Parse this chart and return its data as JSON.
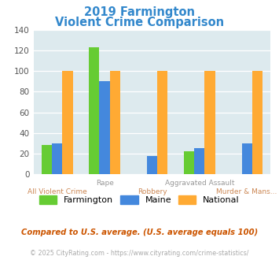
{
  "title_line1": "2019 Farmington",
  "title_line2": "Violent Crime Comparison",
  "farmington": [
    28,
    123,
    0,
    22,
    0
  ],
  "maine": [
    30,
    90,
    18,
    25,
    30
  ],
  "national": [
    100,
    100,
    100,
    100,
    100
  ],
  "bar_color_farmington": "#66cc33",
  "bar_color_maine": "#4488dd",
  "bar_color_national": "#ffaa33",
  "ylim": [
    0,
    140
  ],
  "yticks": [
    0,
    20,
    40,
    60,
    80,
    100,
    120,
    140
  ],
  "bg_color": "#ddeaee",
  "title_color": "#3388cc",
  "top_labels": [
    "",
    "Rape",
    "",
    "Aggravated Assault",
    ""
  ],
  "bottom_labels": [
    "All Violent Crime",
    "",
    "Robbery",
    "",
    "Murder & Mans..."
  ],
  "top_label_color": "#999999",
  "bottom_label_color": "#cc8855",
  "legend_labels": [
    "Farmington",
    "Maine",
    "National"
  ],
  "footnote1": "Compared to U.S. average. (U.S. average equals 100)",
  "footnote2": "© 2025 CityRating.com - https://www.cityrating.com/crime-statistics/",
  "footnote1_color": "#cc5500",
  "footnote2_color": "#aaaaaa"
}
